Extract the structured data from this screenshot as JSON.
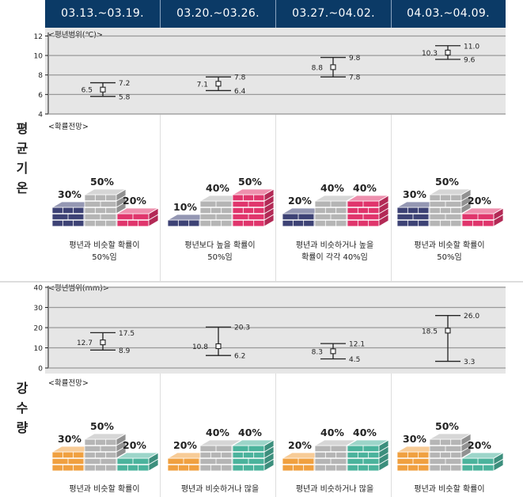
{
  "header": {
    "periods": [
      "03.13.~03.19.",
      "03.20.~03.26.",
      "03.27.~04.02.",
      "04.03.~04.09."
    ]
  },
  "sections": [
    {
      "side_label": [
        "평",
        "균",
        "기",
        "온"
      ],
      "panel_label": "<평년범위(℃)>",
      "prob_label": "<확률전망>"
    },
    {
      "side_label": [
        "강",
        "수",
        "량"
      ],
      "panel_label": "<평년범위(mm)>",
      "prob_label": "<확률전망>"
    }
  ],
  "chart_data": [
    {
      "type": "errorbar",
      "title": "평년범위(℃)",
      "yticks": [
        4,
        6,
        8,
        10,
        12
      ],
      "ylim": [
        4,
        12.2
      ],
      "categories": [
        "03.13.~03.19.",
        "03.20.~03.26.",
        "03.27.~04.02.",
        "04.03.~04.09."
      ],
      "center": [
        6.5,
        7.1,
        8.8,
        10.3
      ],
      "low": [
        5.8,
        6.4,
        7.8,
        9.6
      ],
      "high": [
        7.2,
        7.8,
        9.8,
        11.0
      ],
      "center_labels": [
        "6.5",
        "7.1",
        "8.8",
        "10.3"
      ],
      "low_labels": [
        "5.8",
        "6.4",
        "7.8",
        "9.6"
      ],
      "high_labels": [
        "7.2",
        "7.8",
        "9.8",
        "11.0"
      ],
      "grid": true
    },
    {
      "type": "probability_blocks",
      "title": "확률전망",
      "colors": {
        "below": "#3d4275",
        "normal": "#b5b5b5",
        "above": "#e0356c"
      },
      "categories": [
        "03.13.~03.19.",
        "03.20.~03.26.",
        "03.27.~04.02.",
        "04.03.~04.09."
      ],
      "below": [
        30,
        10,
        20,
        30
      ],
      "normal": [
        50,
        40,
        40,
        50
      ],
      "above": [
        20,
        50,
        40,
        20
      ],
      "captions": [
        [
          "평년과 비슷할 확률이",
          "50%임"
        ],
        [
          "평년보다 높을 확률이",
          "50%임"
        ],
        [
          "평년과 비슷하거나 높을",
          "확률이 각각 40%임"
        ],
        [
          "평년과 비슷할 확률이",
          "50%임"
        ]
      ]
    },
    {
      "type": "errorbar",
      "title": "평년범위(mm)",
      "yticks": [
        0,
        10,
        20,
        30,
        40
      ],
      "ylim": [
        0,
        40
      ],
      "categories": [
        "03.13.~03.19.",
        "03.20.~03.26.",
        "03.27.~04.02.",
        "04.03.~04.09."
      ],
      "center": [
        12.7,
        10.8,
        8.3,
        18.5
      ],
      "low": [
        8.9,
        6.2,
        4.5,
        3.3
      ],
      "high": [
        17.5,
        20.3,
        12.1,
        26.0
      ],
      "center_labels": [
        "12.7",
        "10.8",
        "8.3",
        "18.5"
      ],
      "low_labels": [
        "8.9",
        "6.2",
        "4.5",
        "3.3"
      ],
      "high_labels": [
        "17.5",
        "20.3",
        "12.1",
        "26.0"
      ],
      "grid": true
    },
    {
      "type": "probability_blocks",
      "title": "확률전망",
      "colors": {
        "below": "#f0a040",
        "normal": "#b5b5b5",
        "above": "#4bb39c"
      },
      "categories": [
        "03.13.~03.19.",
        "03.20.~03.26.",
        "03.27.~04.02.",
        "04.03.~04.09."
      ],
      "below": [
        30,
        20,
        20,
        30
      ],
      "normal": [
        50,
        40,
        40,
        50
      ],
      "above": [
        20,
        40,
        40,
        20
      ],
      "captions": [
        [
          "평년과 비슷할 확률이"
        ],
        [
          "평년과 비슷하거나 많을"
        ],
        [
          "평년과 비슷하거나 많을"
        ],
        [
          "평년과 비슷할 확률이"
        ]
      ]
    }
  ]
}
